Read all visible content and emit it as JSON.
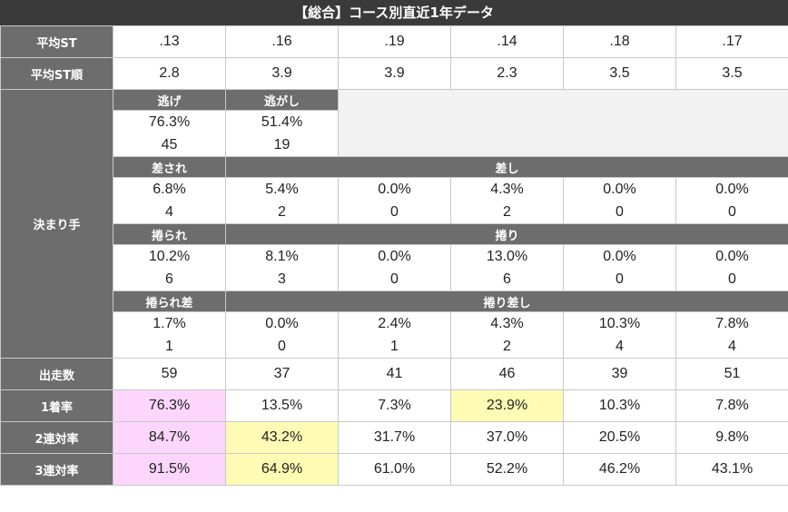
{
  "title": "【総合】コース別直近1年データ",
  "rows": {
    "avg_st": {
      "label": "平均ST",
      "values": [
        ".13",
        ".16",
        ".19",
        ".14",
        ".18",
        ".17"
      ]
    },
    "avg_st_rank": {
      "label": "平均ST順",
      "values": [
        "2.8",
        "3.9",
        "3.9",
        "2.3",
        "3.5",
        "3.5"
      ]
    },
    "kimarite": {
      "label": "決まり手",
      "nige": {
        "header1": "逃げ",
        "header2": "逃がし",
        "pct": [
          "76.3%",
          "51.4%"
        ],
        "cnt": [
          "45",
          "19"
        ]
      },
      "sasi": {
        "header1": "差され",
        "header2": "差し",
        "pct": [
          "6.8%",
          "5.4%",
          "0.0%",
          "4.3%",
          "0.0%",
          "0.0%"
        ],
        "cnt": [
          "4",
          "2",
          "0",
          "2",
          "0",
          "0"
        ]
      },
      "makuri": {
        "header1": "捲られ",
        "header2": "捲り",
        "pct": [
          "10.2%",
          "8.1%",
          "0.0%",
          "13.0%",
          "0.0%",
          "0.0%"
        ],
        "cnt": [
          "6",
          "3",
          "0",
          "6",
          "0",
          "0"
        ]
      },
      "makurisasi": {
        "header1": "捲られ差",
        "header2": "捲り差し",
        "pct": [
          "1.7%",
          "0.0%",
          "2.4%",
          "4.3%",
          "10.3%",
          "7.8%"
        ],
        "cnt": [
          "1",
          "0",
          "1",
          "2",
          "4",
          "4"
        ]
      }
    },
    "starts": {
      "label": "出走数",
      "values": [
        "59",
        "37",
        "41",
        "46",
        "39",
        "51"
      ]
    },
    "win": {
      "label": "1着率",
      "values": [
        "76.3%",
        "13.5%",
        "7.3%",
        "23.9%",
        "10.3%",
        "7.8%"
      ]
    },
    "top2": {
      "label": "2連対率",
      "values": [
        "84.7%",
        "43.2%",
        "31.7%",
        "37.0%",
        "20.5%",
        "9.8%"
      ]
    },
    "top3": {
      "label": "3連対率",
      "values": [
        "91.5%",
        "64.9%",
        "61.0%",
        "52.2%",
        "46.2%",
        "43.1%"
      ]
    }
  },
  "highlight_colors": {
    "pink": "#fcd6fc",
    "yellow": "#fefcb4",
    "header_bg": "#6d6d6d",
    "title_bg": "#3a3a3a"
  }
}
